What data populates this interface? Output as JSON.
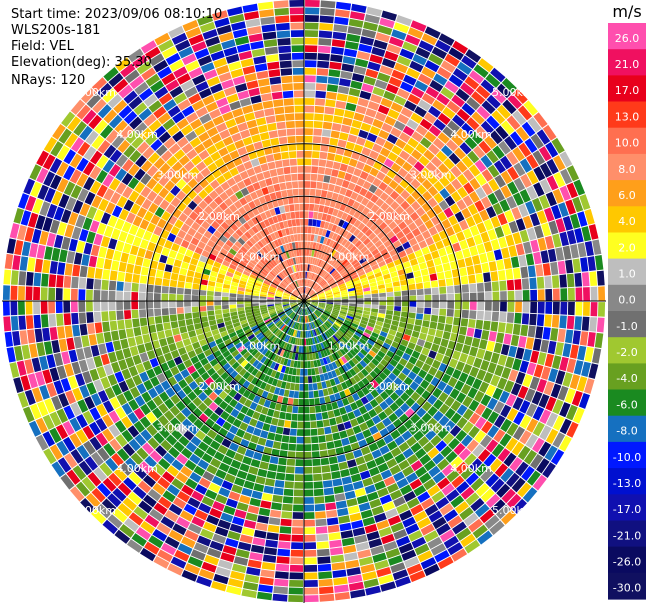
{
  "info": {
    "start_time": "Start time: 2023/09/06 08:10:10",
    "instrument": "WLS200s-181",
    "field": "Field: VEL",
    "elevation": "Elevation(deg): 35.30",
    "nrays": "NRays: 120"
  },
  "chart_data": {
    "type": "heatmap",
    "projection": "polar-ppi",
    "field": "VEL",
    "units": "m/s",
    "nrays": 120,
    "max_range_km": 3.4,
    "grid": true,
    "range_rings_km": [
      1.0,
      2.0,
      3.0
    ],
    "ring_labels": [
      "1.00km",
      "1.00km",
      "1.00km",
      "1.00km",
      "2.00km",
      "2.00km",
      "2.00km",
      "2.00km",
      "3.00km",
      "3.00km",
      "3.00km",
      "3.00km",
      "4.00km",
      "4.00km",
      "4.00km",
      "4.00km",
      "5.00km",
      "5.00km",
      "5.00km",
      "5.00km"
    ],
    "colorbar": {
      "unit": "m/s",
      "tick_labels": [
        "26.0",
        "21.0",
        "17.0",
        "13.0",
        "10.0",
        "8.0",
        "6.0",
        "4.0",
        "2.0",
        "1.0",
        "0.0",
        "-1.0",
        "-2.0",
        "-4.0",
        "-6.0",
        "-8.0",
        "-10.0",
        "-13.0",
        "-17.0",
        "-21.0",
        "-26.0",
        "-30.0"
      ],
      "colors": [
        "#ff4fae",
        "#f01060",
        "#e8001c",
        "#ff3a1a",
        "#ff6f50",
        "#ff8f6a",
        "#ff9f1a",
        "#ffc800",
        "#ffff20",
        "#bebebe",
        "#888888",
        "#707070",
        "#a0c830",
        "#68a020",
        "#1a8a20",
        "#1570c0",
        "#0018ff",
        "#0010d0",
        "#1010b0",
        "#101080",
        "#0a0a60",
        "#101060"
      ]
    }
  }
}
